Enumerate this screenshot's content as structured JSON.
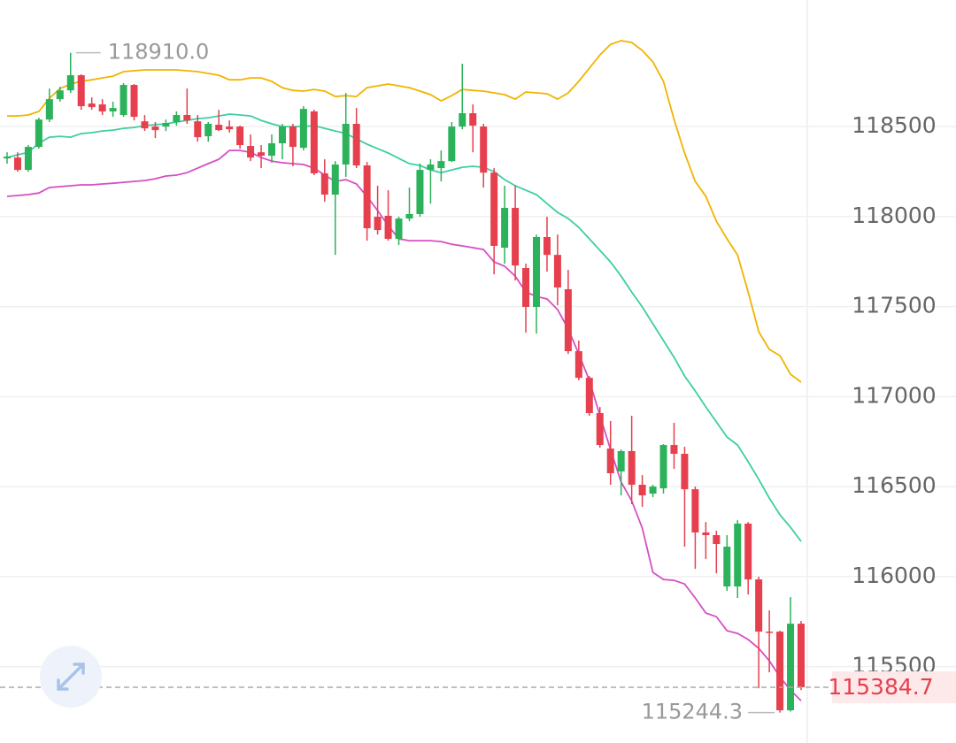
{
  "chart_data": {
    "type": "candlestick",
    "ylim": [
      115149,
      119203
    ],
    "yticks": [
      115500,
      116000,
      116500,
      117000,
      117500,
      118000,
      118500
    ],
    "grid": true,
    "up_color": "#2bb25a",
    "down_color": "#e63f4e",
    "open": [
      118323,
      118328,
      118259,
      118387,
      118539,
      118652,
      118701,
      118785,
      118628,
      118623,
      118584,
      118564,
      118731,
      118529,
      118500,
      118500,
      118525,
      118564,
      118529,
      118446,
      118510,
      118500,
      118500,
      118392,
      118357,
      118338,
      118407,
      118500,
      118382,
      118584,
      118240,
      118122,
      118289,
      118515,
      118284,
      117999,
      118004,
      117876,
      117989,
      118014,
      118259,
      118269,
      118308,
      118500,
      118574,
      118500,
      118244,
      117827,
      118048,
      117714,
      117498,
      117886,
      117787,
      117596,
      117252,
      117104,
      116908,
      116711,
      116584,
      116697,
      116510,
      116461,
      116490,
      116731,
      116682,
      116485,
      116245,
      116230,
      115945,
      115945,
      116294,
      115984,
      115694,
      115694,
      115257,
      115738
    ],
    "high": [
      118357,
      118357,
      118397,
      118549,
      118711,
      118721,
      118910,
      118790,
      118662,
      118652,
      118638,
      118741,
      118736,
      118564,
      118525,
      118539,
      118584,
      118711,
      118564,
      118525,
      118593,
      118534,
      118505,
      118456,
      118397,
      118456,
      118515,
      118515,
      118613,
      118593,
      118318,
      118308,
      118687,
      118603,
      118303,
      118171,
      118146,
      117999,
      118161,
      118294,
      118318,
      118367,
      118525,
      118849,
      118623,
      118515,
      118269,
      118171,
      118171,
      117738,
      117900,
      117999,
      117900,
      117704,
      117311,
      117114,
      116942,
      116864,
      116706,
      116893,
      116564,
      116510,
      116736,
      116854,
      116721,
      116500,
      116303,
      116254,
      116230,
      116313,
      116303,
      115999,
      115812,
      115699,
      115886,
      115753
    ],
    "low": [
      118294,
      118249,
      118249,
      118377,
      118525,
      118638,
      118687,
      118593,
      118593,
      118564,
      118554,
      118554,
      118534,
      118475,
      118436,
      118475,
      118505,
      118515,
      118416,
      118416,
      118475,
      118466,
      118377,
      118308,
      118269,
      118299,
      118318,
      118279,
      118367,
      118230,
      118082,
      117787,
      118220,
      118269,
      117866,
      117900,
      117866,
      117842,
      117974,
      117999,
      118072,
      118195,
      118303,
      118485,
      118357,
      118161,
      117679,
      117738,
      117645,
      117355,
      117350,
      117694,
      117507,
      117237,
      117090,
      116893,
      116716,
      116510,
      116451,
      116402,
      116387,
      116441,
      116461,
      116598,
      116166,
      116043,
      116097,
      116018,
      115920,
      115881,
      115900,
      115379,
      115468,
      115244.3,
      115250,
      115369
    ],
    "close": [
      118333,
      118259,
      118387,
      118539,
      118652,
      118701,
      118785,
      118613,
      118608,
      118584,
      118603,
      118731,
      118554,
      118490,
      118480,
      118520,
      118564,
      118534,
      118441,
      118515,
      118480,
      118485,
      118397,
      118328,
      118338,
      118407,
      118500,
      118387,
      118598,
      118240,
      118122,
      118289,
      118515,
      118284,
      117935,
      117925,
      117876,
      117989,
      118014,
      118259,
      118289,
      118308,
      118500,
      118574,
      118505,
      118244,
      117837,
      118048,
      117728,
      117498,
      117886,
      117787,
      117606,
      117252,
      117104,
      116908,
      116731,
      116574,
      116697,
      116510,
      116451,
      116500,
      116731,
      116682,
      116485,
      116245,
      116230,
      116181,
      116166,
      116294,
      115984,
      115694,
      115689,
      115257,
      115738,
      115384.7
    ],
    "bands": [
      {
        "color": "#f0b400",
        "values": [
          118559,
          118559,
          118564,
          118584,
          118657,
          118711,
          118736,
          118751,
          118760,
          118770,
          118780,
          118805,
          118810,
          118815,
          118815,
          118815,
          118815,
          118810,
          118805,
          118795,
          118785,
          118760,
          118760,
          118770,
          118770,
          118751,
          118716,
          118701,
          118697,
          118706,
          118697,
          118667,
          118672,
          118667,
          118716,
          118726,
          118736,
          118726,
          118716,
          118697,
          118677,
          118643,
          118672,
          118706,
          118701,
          118697,
          118687,
          118677,
          118652,
          118692,
          118687,
          118682,
          118652,
          118687,
          118751,
          118824,
          118898,
          118957,
          118977,
          118967,
          118923,
          118859,
          118751,
          118539,
          118353,
          118195,
          118112,
          117974,
          117876,
          117787,
          117581,
          117360,
          117262,
          117227,
          117124,
          117080
        ]
      },
      {
        "color": "#3ccfa3",
        "values": [
          118328,
          118343,
          118357,
          118407,
          118441,
          118446,
          118441,
          118461,
          118466,
          118475,
          118480,
          118490,
          118495,
          118505,
          118510,
          118515,
          118525,
          118534,
          118544,
          118549,
          118559,
          118569,
          118564,
          118559,
          118534,
          118515,
          118500,
          118500,
          118500,
          118505,
          118490,
          118475,
          118461,
          118431,
          118402,
          118377,
          118353,
          118323,
          118294,
          118284,
          118259,
          118244,
          118259,
          118274,
          118279,
          118274,
          118249,
          118205,
          118171,
          118146,
          118122,
          118072,
          118023,
          117989,
          117940,
          117876,
          117812,
          117748,
          117669,
          117581,
          117498,
          117404,
          117311,
          117218,
          117114,
          117031,
          116942,
          116859,
          116775,
          116731,
          116638,
          116539,
          116436,
          116343,
          116274,
          116195
        ]
      },
      {
        "color": "#d64fc2",
        "values": [
          118112,
          118117,
          118122,
          118131,
          118161,
          118166,
          118171,
          118176,
          118176,
          118181,
          118185,
          118190,
          118195,
          118200,
          118210,
          118225,
          118230,
          118244,
          118269,
          118294,
          118318,
          118367,
          118367,
          118357,
          118328,
          118308,
          118299,
          118294,
          118289,
          118269,
          118230,
          118195,
          118205,
          118181,
          118112,
          118033,
          117950,
          117876,
          117866,
          117866,
          117866,
          117861,
          117846,
          117837,
          117827,
          117817,
          117748,
          117724,
          117669,
          117581,
          117556,
          117542,
          117483,
          117375,
          117237,
          117090,
          116893,
          116706,
          116525,
          116421,
          116269,
          116023,
          115984,
          115979,
          115959,
          115881,
          115797,
          115777,
          115699,
          115684,
          115650,
          115601,
          115532,
          115443,
          115369,
          115310
        ]
      }
    ],
    "high_label": {
      "value": 118910,
      "label": "118910.0"
    },
    "low_label": 115244.3,
    "last_price": 115384.7,
    "last_price_color": "#e63f4e"
  }
}
